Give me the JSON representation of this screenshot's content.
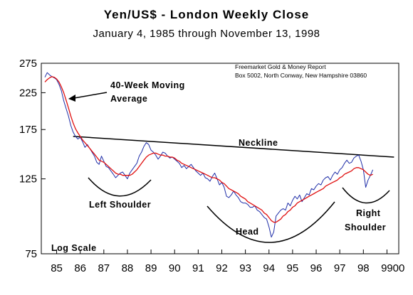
{
  "chart_data": {
    "type": "line",
    "title": "Yen/US$ - London Weekly Close",
    "subtitle": "January 4, 1985 through November 13, 1998",
    "source_line1": "Freemarket Gold & Money Report",
    "source_line2": "Box 5002, North Conway, New Hampshire 03860",
    "scale_label": "Log Scale",
    "y_scale": "log",
    "ylim": [
      75,
      275
    ],
    "xlim": [
      1984.85,
      2000.0
    ],
    "y_ticks": [
      75,
      125,
      175,
      225,
      275
    ],
    "x_ticks": [
      {
        "value": 1985.5,
        "label": "85"
      },
      {
        "value": 1986.5,
        "label": "86"
      },
      {
        "value": 1987.5,
        "label": "87"
      },
      {
        "value": 1988.5,
        "label": "88"
      },
      {
        "value": 1989.5,
        "label": "89"
      },
      {
        "value": 1990.5,
        "label": "90"
      },
      {
        "value": 1991.5,
        "label": "91"
      },
      {
        "value": 1992.5,
        "label": "92"
      },
      {
        "value": 1993.5,
        "label": "93"
      },
      {
        "value": 1994.5,
        "label": "94"
      },
      {
        "value": 1995.5,
        "label": "95"
      },
      {
        "value": 1996.5,
        "label": "96"
      },
      {
        "value": 1997.5,
        "label": "97"
      },
      {
        "value": 1998.5,
        "label": "98"
      },
      {
        "value": 1999.5,
        "label": "99"
      },
      {
        "value": 2000.0,
        "label": "00"
      }
    ],
    "series": [
      {
        "name": "",
        "color": "#1f2ea8",
        "x": [
          1985.0,
          1985.1,
          1985.2,
          1985.3,
          1985.4,
          1985.5,
          1985.6,
          1985.7,
          1985.8,
          1985.9,
          1986.0,
          1986.1,
          1986.2,
          1986.3,
          1986.4,
          1986.5,
          1986.6,
          1986.7,
          1986.8,
          1986.9,
          1987.0,
          1987.1,
          1987.2,
          1987.3,
          1987.4,
          1987.5,
          1987.6,
          1987.7,
          1987.8,
          1987.9,
          1988.0,
          1988.1,
          1988.2,
          1988.3,
          1988.4,
          1988.5,
          1988.6,
          1988.7,
          1988.8,
          1988.9,
          1989.0,
          1989.1,
          1989.2,
          1989.3,
          1989.4,
          1989.5,
          1989.6,
          1989.7,
          1989.8,
          1989.9,
          1990.0,
          1990.1,
          1990.2,
          1990.3,
          1990.4,
          1990.5,
          1990.6,
          1990.7,
          1990.8,
          1990.9,
          1991.0,
          1991.1,
          1991.2,
          1991.3,
          1991.4,
          1991.5,
          1991.6,
          1991.7,
          1991.8,
          1991.9,
          1992.0,
          1992.1,
          1992.2,
          1992.3,
          1992.4,
          1992.5,
          1992.6,
          1992.7,
          1992.8,
          1992.9,
          1993.0,
          1993.1,
          1993.2,
          1993.3,
          1993.4,
          1993.5,
          1993.6,
          1993.7,
          1993.8,
          1993.9,
          1994.0,
          1994.1,
          1994.2,
          1994.3,
          1994.4,
          1994.5,
          1994.6,
          1994.7,
          1994.8,
          1994.9,
          1995.0,
          1995.1,
          1995.2,
          1995.3,
          1995.4,
          1995.5,
          1995.6,
          1995.7,
          1995.8,
          1995.9,
          1996.0,
          1996.1,
          1996.2,
          1996.3,
          1996.4,
          1996.5,
          1996.6,
          1996.7,
          1996.8,
          1996.9,
          1997.0,
          1997.1,
          1997.2,
          1997.3,
          1997.4,
          1997.5,
          1997.6,
          1997.7,
          1997.8,
          1997.9,
          1998.0,
          1998.1,
          1998.2,
          1998.3,
          1998.4,
          1998.5,
          1998.6,
          1998.7,
          1998.8,
          1998.9
        ],
        "values": [
          250,
          258,
          254,
          251,
          249,
          246,
          238,
          228,
          213,
          202,
          192,
          180,
          172,
          167,
          164,
          166,
          161,
          155,
          158,
          154,
          150,
          146,
          140,
          138,
          146,
          141,
          136,
          135,
          132,
          129,
          126,
          128,
          130,
          131,
          128,
          125,
          130,
          133,
          136,
          139,
          146,
          150,
          156,
          160,
          158,
          152,
          150,
          147,
          143,
          146,
          150,
          149,
          146,
          144,
          145,
          143,
          141,
          139,
          135,
          137,
          134,
          136,
          138,
          135,
          132,
          130,
          128,
          130,
          126,
          125,
          123,
          127,
          130,
          125,
          120,
          122,
          118,
          111,
          110,
          112,
          115,
          112,
          110,
          107,
          106,
          106,
          105,
          103,
          103,
          104,
          101,
          100,
          98,
          96,
          95,
          90,
          84,
          87,
          97,
          99,
          101,
          102,
          101,
          106,
          104,
          108,
          111,
          109,
          112,
          107,
          110,
          113,
          112,
          117,
          116,
          119,
          121,
          120,
          124,
          126,
          127,
          124,
          128,
          131,
          129,
          133,
          135,
          139,
          142,
          139,
          140,
          144,
          146,
          147,
          141,
          133,
          118,
          124,
          128,
          133
        ]
      },
      {
        "name": "40-Week Moving Average",
        "color": "#e01010",
        "x": [
          1985.0,
          1985.1,
          1985.2,
          1985.3,
          1985.4,
          1985.5,
          1985.6,
          1985.7,
          1985.8,
          1985.9,
          1986.0,
          1986.1,
          1986.2,
          1986.3,
          1986.4,
          1986.5,
          1986.6,
          1986.7,
          1986.8,
          1986.9,
          1987.0,
          1987.1,
          1987.2,
          1987.3,
          1987.4,
          1987.5,
          1987.6,
          1987.7,
          1987.8,
          1987.9,
          1988.0,
          1988.1,
          1988.2,
          1988.3,
          1988.4,
          1988.5,
          1988.6,
          1988.7,
          1988.8,
          1988.9,
          1989.0,
          1989.1,
          1989.2,
          1989.3,
          1989.4,
          1989.5,
          1989.6,
          1989.7,
          1989.8,
          1989.9,
          1990.0,
          1990.1,
          1990.2,
          1990.3,
          1990.4,
          1990.5,
          1990.6,
          1990.7,
          1990.8,
          1990.9,
          1991.0,
          1991.1,
          1991.2,
          1991.3,
          1991.4,
          1991.5,
          1991.6,
          1991.7,
          1991.8,
          1991.9,
          1992.0,
          1992.1,
          1992.2,
          1992.3,
          1992.4,
          1992.5,
          1992.6,
          1992.7,
          1992.8,
          1992.9,
          1993.0,
          1993.1,
          1993.2,
          1993.3,
          1993.4,
          1993.5,
          1993.6,
          1993.7,
          1993.8,
          1993.9,
          1994.0,
          1994.1,
          1994.2,
          1994.3,
          1994.4,
          1994.5,
          1994.6,
          1994.7,
          1994.8,
          1994.9,
          1995.0,
          1995.1,
          1995.2,
          1995.3,
          1995.4,
          1995.5,
          1995.6,
          1995.7,
          1995.8,
          1995.9,
          1996.0,
          1996.1,
          1996.2,
          1996.3,
          1996.4,
          1996.5,
          1996.6,
          1996.7,
          1996.8,
          1996.9,
          1997.0,
          1997.1,
          1997.2,
          1997.3,
          1997.4,
          1997.5,
          1997.6,
          1997.7,
          1997.8,
          1997.9,
          1998.0,
          1998.1,
          1998.2,
          1998.3,
          1998.4,
          1998.5,
          1998.6,
          1998.7,
          1998.8,
          1998.9
        ],
        "values": [
          242,
          246,
          249,
          251,
          250,
          247,
          242,
          234,
          225,
          214,
          203,
          192,
          183,
          176,
          171,
          167,
          163,
          160,
          157,
          154,
          151,
          148,
          145,
          142,
          141,
          140,
          138,
          136,
          134,
          132,
          130,
          129,
          129,
          128,
          128,
          128,
          128,
          129,
          131,
          133,
          136,
          139,
          142,
          145,
          147,
          148,
          149,
          149,
          148,
          147,
          147,
          146,
          146,
          145,
          145,
          144,
          142,
          141,
          139,
          138,
          137,
          136,
          135,
          134,
          133,
          132,
          131,
          130,
          129,
          128,
          127,
          126,
          126,
          125,
          124,
          122,
          121,
          119,
          117,
          116,
          115,
          114,
          113,
          111,
          110,
          109,
          107,
          106,
          105,
          104,
          103,
          102,
          101,
          99,
          98,
          96,
          94,
          93,
          93,
          94,
          95,
          97,
          98,
          100,
          101,
          103,
          104,
          106,
          107,
          108,
          109,
          110,
          111,
          112,
          113,
          114,
          115,
          116,
          117,
          119,
          120,
          121,
          122,
          123,
          124,
          126,
          127,
          129,
          130,
          131,
          132,
          134,
          135,
          135,
          134,
          133,
          131,
          129,
          128,
          129
        ]
      }
    ],
    "annotations": {
      "moving_average_line1": "40-Week Moving",
      "moving_average_line2": "Average",
      "neckline": "Neckline",
      "left_shoulder": "Left Shoulder",
      "head": "Head",
      "right_shoulder_line1": "Right",
      "right_shoulder_line2": "Shoulder"
    },
    "neckline_points": [
      {
        "x": 1986.2,
        "y": 167
      },
      {
        "x": 1999.8,
        "y": 145
      }
    ],
    "grid": false,
    "legend": "none"
  }
}
